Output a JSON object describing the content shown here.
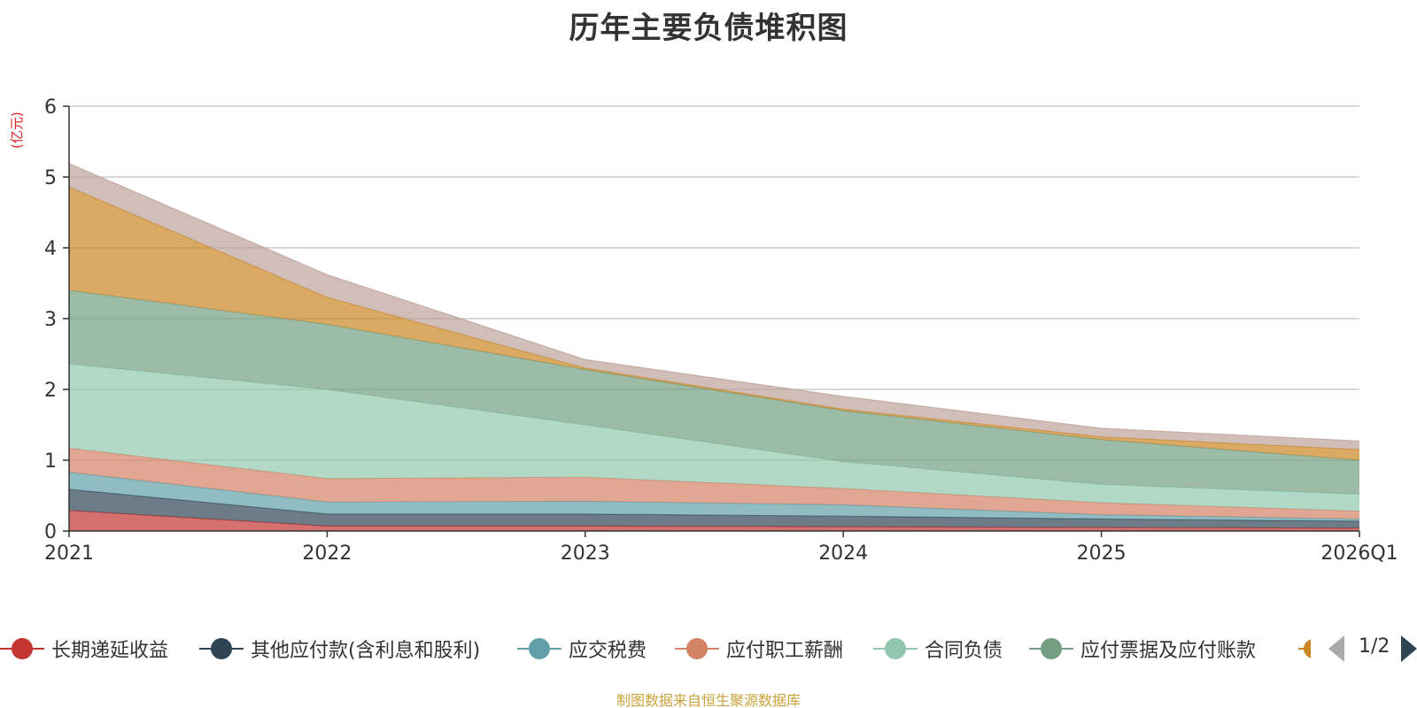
{
  "title": "历年主要负债堆积图",
  "unit_label": "(亿元)",
  "footer": "制图数据来自恒生聚源数据库",
  "pager": {
    "text": "1/2"
  },
  "legend": [
    {
      "label": "长期递延收益",
      "color": "#c23531"
    },
    {
      "label": "其他应付款(含利息和股利)",
      "color": "#2f4554"
    },
    {
      "label": "应交税费",
      "color": "#61a0a8"
    },
    {
      "label": "应付职工薪酬",
      "color": "#d48265"
    },
    {
      "label": "合同负债",
      "color": "#91c7ae"
    },
    {
      "label": "应付票据及应付账款",
      "color": "#749f83"
    }
  ],
  "legend_partial_color": "#ca8622",
  "chart_data": {
    "type": "area",
    "stacked": true,
    "title": "历年主要负债堆积图",
    "ylabel": "(亿元)",
    "x": [
      "2021",
      "2022",
      "2023",
      "2024",
      "2025",
      "2026Q1"
    ],
    "ylim": [
      0,
      6
    ],
    "yticks": [
      0,
      1,
      2,
      3,
      4,
      5,
      6
    ],
    "grid": true,
    "legend_position": "bottom",
    "series": [
      {
        "name": "长期递延收益",
        "color": "#c23531",
        "values": [
          0.29,
          0.07,
          0.07,
          0.06,
          0.05,
          0.04
        ]
      },
      {
        "name": "其他应付款(含利息和股利)",
        "color": "#2f4554",
        "values": [
          0.3,
          0.17,
          0.17,
          0.15,
          0.12,
          0.1
        ]
      },
      {
        "name": "应交税费",
        "color": "#61a0a8",
        "values": [
          0.24,
          0.17,
          0.18,
          0.16,
          0.06,
          0.03
        ]
      },
      {
        "name": "应付职工薪酬",
        "color": "#d48265",
        "values": [
          0.34,
          0.33,
          0.34,
          0.23,
          0.17,
          0.11
        ]
      },
      {
        "name": "合同负债",
        "color": "#91c7ae",
        "values": [
          1.19,
          1.26,
          0.74,
          0.38,
          0.26,
          0.24
        ]
      },
      {
        "name": "应付票据及应付账款",
        "color": "#749f83",
        "values": [
          1.04,
          0.92,
          0.78,
          0.72,
          0.63,
          0.48
        ]
      },
      {
        "color": "#ca8622",
        "values": [
          1.46,
          0.38,
          0.02,
          0.02,
          0.04,
          0.15
        ]
      },
      {
        "color": "#bda29a",
        "values": [
          0.33,
          0.32,
          0.12,
          0.18,
          0.12,
          0.12
        ]
      }
    ]
  }
}
